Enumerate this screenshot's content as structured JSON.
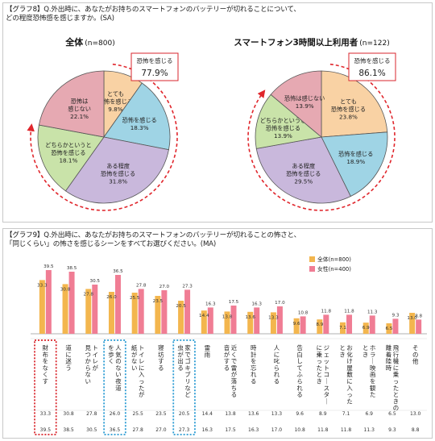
{
  "graph8": {
    "tag": "【グラフ8】",
    "question_line1": "Q.外出時に、あなたがお持ちのスマートフォンのバッテリーが切れることについて、",
    "question_line2": "どの程度恐怖感を感じますか。(SA)"
  },
  "graph9": {
    "tag": "【グラフ9】",
    "question_line1": "Q.外出時に、あなたがお持ちのスマートフォンのバッテリーが切れることの怖さと、",
    "question_line2": "「同じくらい」の怖さを感じるシーンをすべてお選びください。(MA)"
  },
  "colors": {
    "slice_totemo": "#f9d2a4",
    "slice_kanjiru": "#9fd4e5",
    "slice_aruteido": "#c9b8dc",
    "slice_dochira": "#c9e3a9",
    "slice_kanjinai": "#e6a9b2",
    "series_all": "#f3b64e",
    "series_women": "#f07d94",
    "arrow_red": "#e0262c",
    "highlight_red": "#d9262c",
    "highlight_blue": "#2a9bd3"
  },
  "chart_data": [
    {
      "type": "pie",
      "title": "全体",
      "n_label": "(n=800)",
      "callout_label": "恐怖を感じる",
      "callout_value": "77.9%",
      "slices": [
        {
          "label": "とても恐怖を感じる",
          "value": 9.8,
          "text": "9.8%"
        },
        {
          "label": "恐怖を感じる",
          "value": 18.3,
          "text": "18.3%"
        },
        {
          "label": "ある程度恐怖を感じる",
          "value": 31.8,
          "text": "31.8%"
        },
        {
          "label": "どちらかというと恐怖を感じる",
          "value": 18.1,
          "text": "18.1%"
        },
        {
          "label": "恐怖は感じない",
          "value": 22.1,
          "text": "22.1%"
        }
      ]
    },
    {
      "type": "pie",
      "title": "スマートフォン3時間以上利用者",
      "n_label": "(n=122)",
      "callout_label": "恐怖を感じる",
      "callout_value": "86.1%",
      "slices": [
        {
          "label": "とても恐怖を感じる",
          "value": 23.8,
          "text": "23.8%"
        },
        {
          "label": "恐怖を感じる",
          "value": 18.9,
          "text": "18.9%"
        },
        {
          "label": "ある程度恐怖を感じる",
          "value": 29.5,
          "text": "29.5%"
        },
        {
          "label": "どちらかというと恐怖を感じる",
          "value": 13.9,
          "text": "13.9%"
        },
        {
          "label": "恐怖は感じない",
          "value": 13.9,
          "text": "13.9%"
        }
      ]
    },
    {
      "type": "bar",
      "legend_position": "top-right",
      "series": [
        {
          "name": "全体(n=800)",
          "values": [
            33.3,
            30.8,
            27.8,
            26.0,
            25.5,
            23.5,
            20.5,
            14.4,
            13.8,
            13.6,
            13.3,
            9.6,
            8.9,
            7.1,
            6.9,
            6.5,
            13.0
          ]
        },
        {
          "name": "女性(n=400)",
          "values": [
            39.5,
            38.5,
            30.5,
            36.5,
            27.8,
            27.0,
            27.3,
            16.3,
            17.5,
            16.3,
            17.0,
            10.8,
            11.8,
            11.8,
            11.3,
            9.3,
            8.8
          ]
        }
      ],
      "categories": [
        "財布をなくす",
        "道に迷う",
        "トイレが見つからない",
        "人気のない夜道を歩く",
        "トイレに入ったが紙がない",
        "寝坊する",
        "家でゴキブリなど虫が出る",
        "雷雨",
        "近くで雷が落ちる音がする",
        "時計を忘れる",
        "人に叱られる",
        "告白してふられる",
        "ジェットコースターに乗ったとき",
        "お化け屋敷に入ったとき",
        "ホラー映画を観たとき",
        "飛行機に乗ったときの離着陸時",
        "その他"
      ],
      "table_all": [
        "33.3",
        "30.8",
        "27.8",
        "26.0",
        "25.5",
        "23.5",
        "20.5",
        "14.4",
        "13.8",
        "13.6",
        "13.3",
        "9.6",
        "8.9",
        "7.1",
        "6.9",
        "6.5",
        "13.0"
      ],
      "table_women": [
        "39.5",
        "38.5",
        "30.5",
        "36.5",
        "27.8",
        "27.0",
        "27.3",
        "16.3",
        "17.5",
        "16.3",
        "17.0",
        "10.8",
        "11.8",
        "11.8",
        "11.3",
        "9.3",
        "8.8"
      ],
      "highlight_red": [
        0
      ],
      "highlight_blue": [
        3,
        6
      ]
    }
  ]
}
